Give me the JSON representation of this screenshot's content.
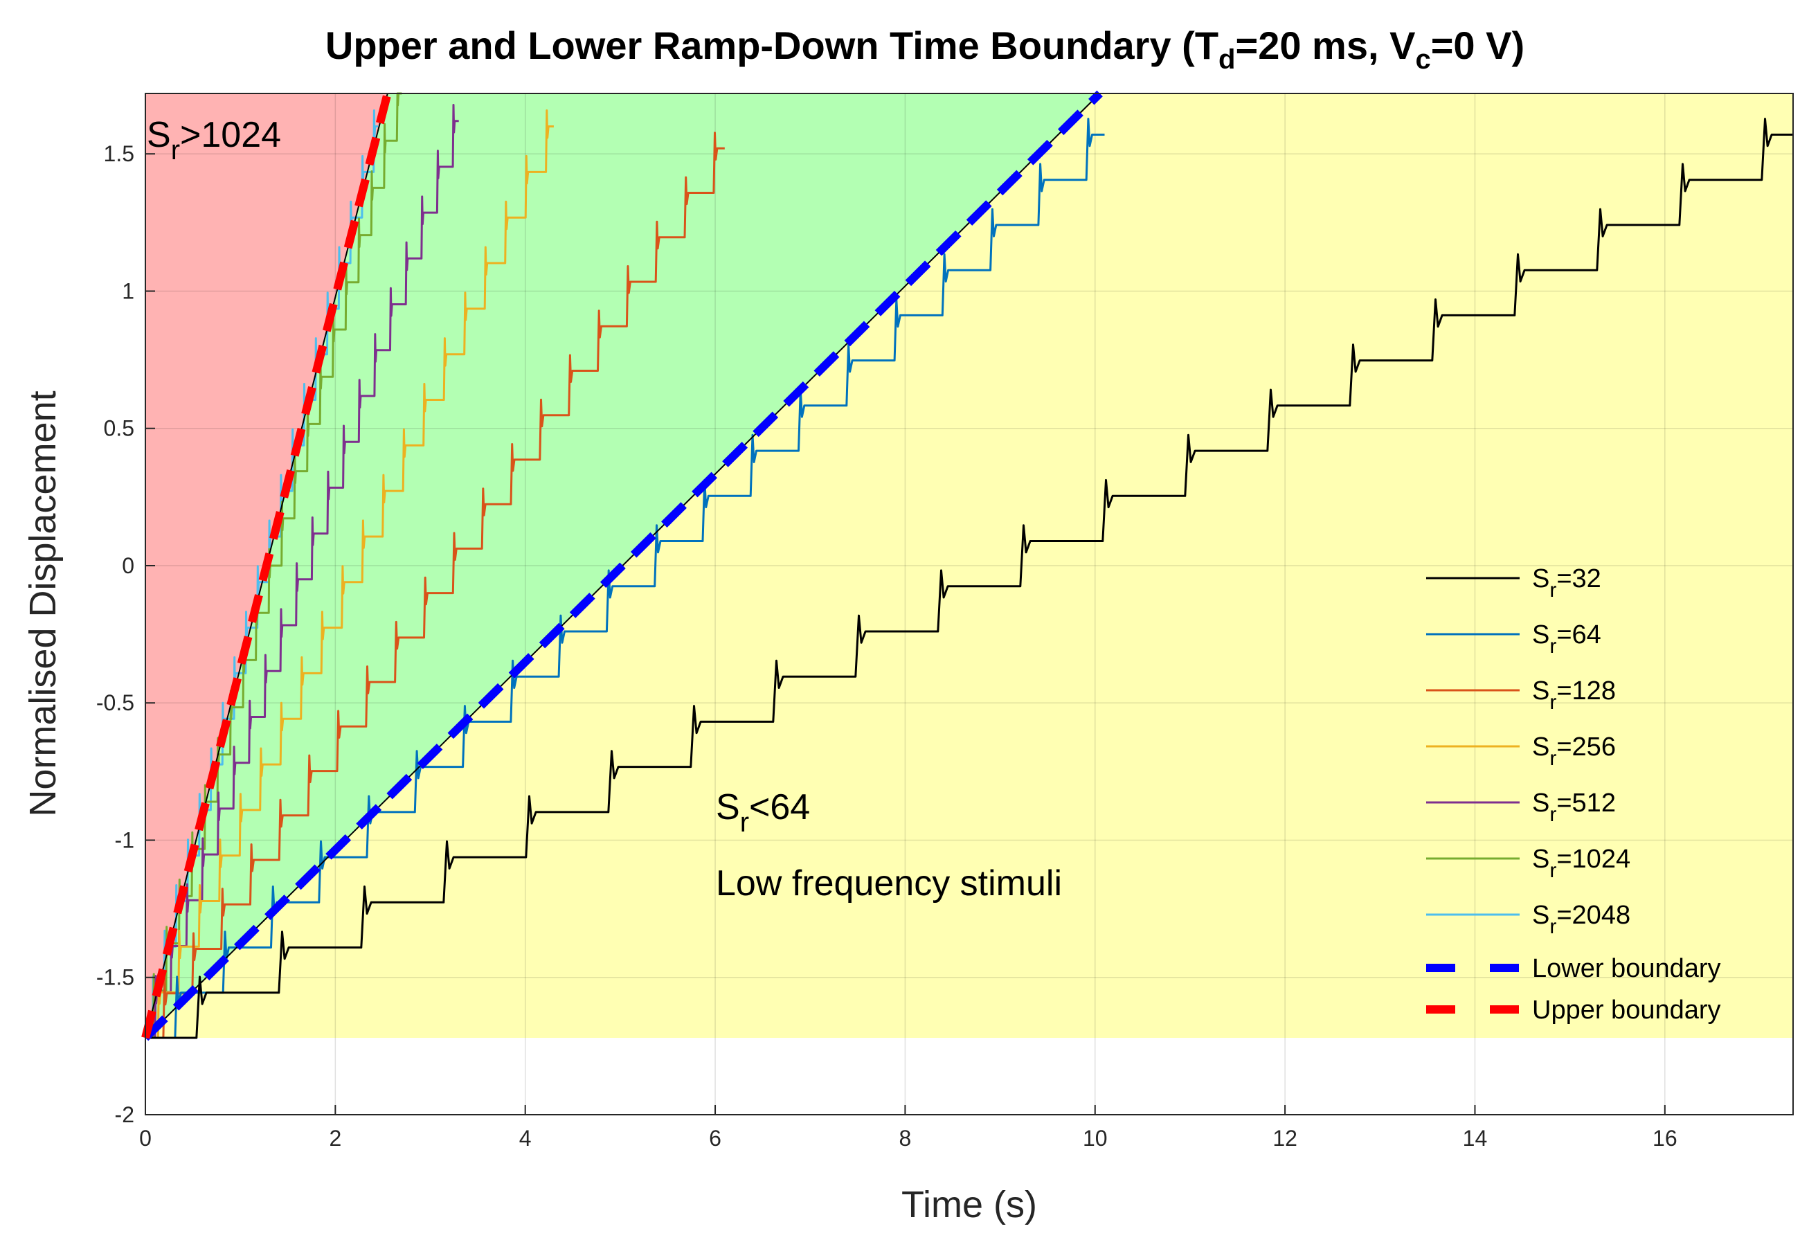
{
  "chart_data": {
    "type": "line",
    "title_parts": {
      "pre": "Upper and Lower Ramp-Down Time Boundary (T",
      "sub1": "d",
      "mid": "=20 ms, V",
      "sub2": "c",
      "post": "=0 V)"
    },
    "xlabel": "Time (s)",
    "ylabel": "Normalised Displacement",
    "xlim": [
      0,
      17.35
    ],
    "ylim": [
      -2,
      1.72
    ],
    "xticks": [
      0,
      2,
      4,
      6,
      8,
      10,
      12,
      14,
      16
    ],
    "yticks": [
      -2,
      -1.5,
      -1,
      -0.5,
      0,
      0.5,
      1,
      1.5
    ],
    "ytick_labels": [
      "-2",
      "-1.5",
      "-1",
      "-0.5",
      "0",
      "0.5",
      "1",
      "1.5"
    ],
    "grid": true,
    "regions": [
      {
        "name": "Sr>1024 region",
        "color": "#ffb3b3",
        "polygon": [
          [
            0,
            -1.72
          ],
          [
            0,
            1.72
          ],
          [
            2.55,
            1.72
          ]
        ]
      },
      {
        "name": "intermediate region",
        "color": "#b3ffb3",
        "polygon": [
          [
            0,
            -1.72
          ],
          [
            2.55,
            1.72
          ],
          [
            10.05,
            1.72
          ]
        ]
      },
      {
        "name": "Sr<64 region",
        "color": "#ffffb3",
        "polygon": [
          [
            0,
            -1.72
          ],
          [
            10.05,
            1.72
          ],
          [
            17.35,
            1.72
          ],
          [
            17.35,
            -1.72
          ]
        ]
      }
    ],
    "series": [
      {
        "name": "S_r=32",
        "sr": "32",
        "color": "#000000",
        "t_end": 17.35,
        "steps": 20,
        "y_end": 1.57
      },
      {
        "name": "S_r=64",
        "sr": "64",
        "color": "#0072bd",
        "t_end": 10.1,
        "steps": 20,
        "y_end": 1.57
      },
      {
        "name": "S_r=128",
        "sr": "128",
        "color": "#d95319",
        "t_end": 6.1,
        "steps": 20,
        "y_end": 1.52
      },
      {
        "name": "S_r=256",
        "sr": "256",
        "color": "#edb120",
        "t_end": 4.3,
        "steps": 20,
        "y_end": 1.6
      },
      {
        "name": "S_r=512",
        "sr": "512",
        "color": "#7e2f8e",
        "t_end": 3.3,
        "steps": 20,
        "y_end": 1.62
      },
      {
        "name": "S_r=1024",
        "sr": "1024",
        "color": "#77ac30",
        "t_end": 2.7,
        "steps": 20,
        "y_end": 1.72
      },
      {
        "name": "S_r=2048",
        "sr": "2048",
        "color": "#4dbeee",
        "t_end": 2.45,
        "steps": 20,
        "y_end": 1.6
      }
    ],
    "boundaries": [
      {
        "name": "Lower boundary",
        "color": "#0000ff",
        "x": [
          0,
          10.05
        ],
        "y": [
          -1.72,
          1.72
        ]
      },
      {
        "name": "Upper boundary",
        "color": "#ff0000",
        "x": [
          0,
          2.55
        ],
        "y": [
          -1.72,
          1.72
        ]
      }
    ],
    "annotations": {
      "upper": {
        "pre": "S",
        "sub": "r",
        "post": ">1024"
      },
      "lower": {
        "pre": "S",
        "sub": "r",
        "post": "<64"
      },
      "lower_note": "Low frequency stimuli"
    },
    "legend_position": "bottom-right"
  }
}
